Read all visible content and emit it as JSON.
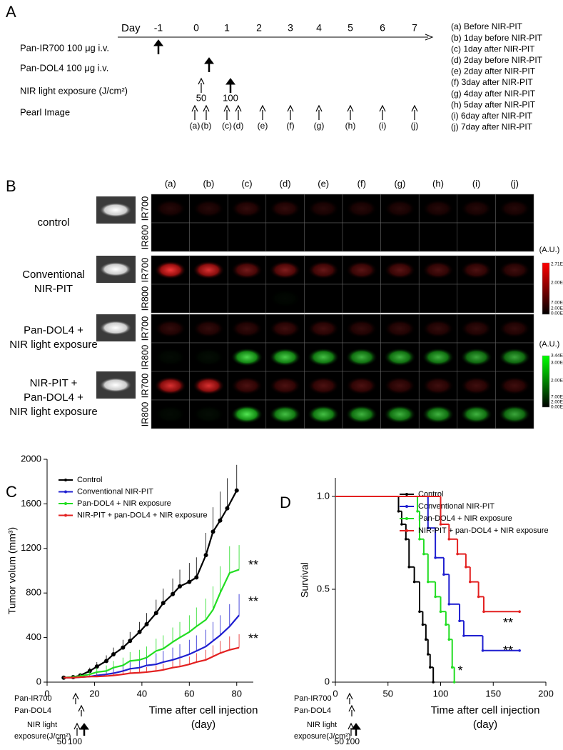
{
  "panel_a": {
    "label": "A",
    "day_label": "Day",
    "days": [
      "-1",
      "0",
      "1",
      "2",
      "3",
      "4",
      "5",
      "6",
      "7"
    ],
    "rows": [
      "Pan-IR700 100 μg i.v.",
      "Pan-DOL4 100 μg i.v.",
      "NIR light exposure (J/cm²)",
      "Pearl Image"
    ],
    "light_doses": [
      "50",
      "100"
    ],
    "image_points": [
      "(a)",
      "(b)",
      "(c)",
      "(d)",
      "(e)",
      "(f)",
      "(g)",
      "(h)",
      "(i)",
      "(j)"
    ],
    "legend": [
      "(a)  Before NIR-PIT",
      "(b)  1day before NIR-PIT",
      "(c)  1day after NIR-PIT",
      "(d)  2day before NIR-PIT",
      "(e)  2day after NIR-PIT",
      "(f)  3day after NIR-PIT",
      "(g)  4day after NIR-PIT",
      "(h)  5day after NIR-PIT",
      "(i)  6day after NIR-PIT",
      "(j)  7day after NIR-PIT"
    ]
  },
  "panel_b": {
    "label": "B",
    "columns": [
      "(a)",
      "(b)",
      "(c)",
      "(d)",
      "(e)",
      "(f)",
      "(g)",
      "(h)",
      "(i)",
      "(j)"
    ],
    "channels": [
      "IR700",
      "IR800"
    ],
    "groups": [
      [
        "control"
      ],
      [
        "Conventional",
        "NIR-PIT"
      ],
      [
        "Pan-DOL4 +",
        "NIR light exposure"
      ],
      [
        "NIR-PIT +",
        "Pan-DOL4 +",
        "NIR light exposure"
      ]
    ],
    "unit": "(A.U.)",
    "red_scale": [
      "2.71E0",
      "2.00E0",
      "7.00E-1",
      "2.00E-1",
      "0.00E0"
    ],
    "green_scale": [
      "3.44E-1",
      "3.00E-1",
      "2.00E-1",
      "7.00E-2",
      "2.00E-2",
      "0.00E0"
    ]
  },
  "chart_data": [
    {
      "type": "line",
      "label": "C",
      "y_label": "Tumor volum (mm³)",
      "x_label": [
        "Time after cell injection",
        "(day)"
      ],
      "xlim": [
        0,
        87
      ],
      "xticks": [
        0,
        20,
        40,
        60,
        80
      ],
      "ylim": [
        0,
        2000
      ],
      "yticks": [
        0,
        400,
        800,
        1200,
        1600,
        2000
      ],
      "series": [
        {
          "name": "Control",
          "color": "#000000",
          "x": [
            7,
            11,
            14,
            18,
            21,
            25,
            28,
            32,
            35,
            39,
            42,
            46,
            49,
            53,
            56,
            60,
            63,
            67,
            70,
            73,
            76,
            80
          ],
          "values": [
            40,
            45,
            60,
            100,
            140,
            190,
            250,
            310,
            370,
            450,
            520,
            620,
            710,
            790,
            860,
            900,
            940,
            1140,
            1350,
            1450,
            1560,
            1720
          ],
          "errors": [
            10,
            15,
            20,
            30,
            40,
            50,
            60,
            70,
            80,
            90,
            100,
            120,
            130,
            140,
            150,
            170,
            180,
            200,
            220,
            260,
            270,
            230
          ]
        },
        {
          "name": "Conventional NIR-PIT",
          "color": "#1f1fd0",
          "x": [
            7,
            11,
            14,
            18,
            21,
            25,
            28,
            32,
            35,
            39,
            42,
            46,
            49,
            53,
            56,
            60,
            63,
            67,
            70,
            73,
            77,
            81
          ],
          "values": [
            40,
            40,
            45,
            50,
            60,
            70,
            80,
            100,
            120,
            130,
            150,
            160,
            180,
            200,
            220,
            250,
            280,
            320,
            370,
            420,
            500,
            600
          ],
          "errors": [
            10,
            10,
            15,
            20,
            30,
            40,
            50,
            60,
            70,
            80,
            90,
            100,
            100,
            110,
            120,
            130,
            140,
            150,
            170,
            180,
            200,
            190
          ]
        },
        {
          "name": "Pan-DOL4 + NIR exposure",
          "color": "#22dd22",
          "x": [
            7,
            11,
            14,
            18,
            21,
            25,
            28,
            32,
            35,
            39,
            42,
            46,
            49,
            53,
            56,
            60,
            63,
            67,
            70,
            73,
            77,
            81
          ],
          "values": [
            40,
            45,
            55,
            70,
            90,
            100,
            130,
            150,
            190,
            200,
            220,
            280,
            300,
            360,
            400,
            450,
            500,
            560,
            650,
            800,
            980,
            1010
          ],
          "errors": [
            10,
            15,
            20,
            30,
            40,
            50,
            60,
            70,
            80,
            90,
            100,
            110,
            120,
            130,
            140,
            150,
            170,
            190,
            210,
            240,
            240,
            220
          ]
        },
        {
          "name": "NIR-PIT + pan-DOL4 + NIR exposure",
          "color": "#e32020",
          "x": [
            7,
            11,
            14,
            18,
            21,
            25,
            28,
            32,
            35,
            39,
            42,
            46,
            49,
            53,
            56,
            60,
            63,
            67,
            70,
            73,
            77,
            81
          ],
          "values": [
            40,
            40,
            45,
            50,
            50,
            55,
            60,
            70,
            80,
            85,
            90,
            100,
            110,
            130,
            140,
            160,
            180,
            200,
            230,
            260,
            290,
            310
          ],
          "errors": [
            10,
            10,
            10,
            15,
            20,
            20,
            25,
            30,
            35,
            40,
            45,
            50,
            55,
            60,
            65,
            70,
            80,
            90,
            100,
            110,
            120,
            120
          ]
        }
      ],
      "annotations": [
        "**",
        "**",
        "**"
      ],
      "dosing": {
        "labels": [
          "Pan-IR700",
          "Pan-DOL4",
          "NIR light",
          "exposure(J/cm²)"
        ],
        "doses": [
          "50",
          "100"
        ]
      }
    },
    {
      "type": "survival",
      "label": "D",
      "y_label": "Survival",
      "x_label": [
        "Time after cell injection",
        "(day)"
      ],
      "xlim": [
        0,
        200
      ],
      "xticks": [
        0,
        50,
        100,
        150,
        200
      ],
      "ylim": [
        0,
        1.1
      ],
      "yticks": [
        0,
        0.5,
        {
          "value": 1,
          "label": "1.0"
        }
      ],
      "series": [
        {
          "name": "Control",
          "color": "#000000",
          "x": [
            0,
            60,
            63,
            67,
            70,
            75,
            80,
            83,
            86,
            88,
            90,
            93
          ],
          "values": [
            1,
            0.92,
            0.85,
            0.77,
            0.62,
            0.54,
            0.38,
            0.31,
            0.23,
            0.15,
            0.08,
            0
          ]
        },
        {
          "name": "Conventional NIR-PIT",
          "color": "#1f1fd0",
          "x": [
            0,
            88,
            95,
            103,
            108,
            118,
            122,
            140,
            175
          ],
          "values": [
            1,
            0.83,
            0.67,
            0.58,
            0.42,
            0.33,
            0.25,
            0.17,
            0.17
          ]
        },
        {
          "name": "Pan-DOL4 + NIR exposure",
          "color": "#22dd22",
          "x": [
            0,
            78,
            80,
            84,
            88,
            95,
            100,
            105,
            108,
            111,
            113
          ],
          "values": [
            1,
            0.92,
            0.77,
            0.69,
            0.54,
            0.46,
            0.38,
            0.31,
            0.23,
            0.08,
            0
          ]
        },
        {
          "name": "NIR-PIT + pan-DOL4 + NIR exposure",
          "color": "#e32020",
          "x": [
            0,
            100,
            108,
            116,
            124,
            128,
            136,
            141,
            175
          ],
          "values": [
            1,
            0.85,
            0.77,
            0.69,
            0.62,
            0.54,
            0.46,
            0.38,
            0.38
          ]
        }
      ],
      "annotations": [
        "**",
        "**",
        "*"
      ],
      "dosing": {
        "labels": [
          "Pan-IR700",
          "Pan-DOL4",
          "NIR light",
          "exposure(J/cm²)"
        ],
        "doses": [
          "50",
          "100"
        ]
      }
    }
  ]
}
